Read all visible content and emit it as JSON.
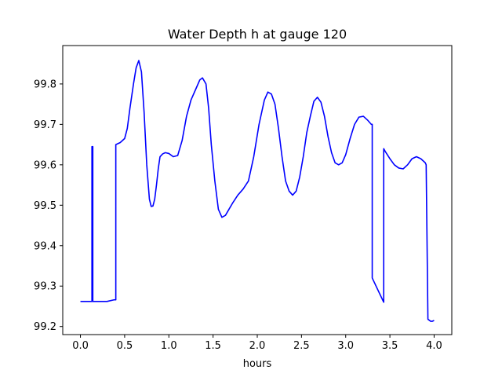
{
  "chart_data": {
    "type": "line",
    "title": "Water Depth h at gauge 120",
    "xlabel": "hours",
    "ylabel": "",
    "xlim": [
      -0.2,
      4.2
    ],
    "ylim": [
      99.18,
      99.895
    ],
    "xticks": [
      0.0,
      0.5,
      1.0,
      1.5,
      2.0,
      2.5,
      3.0,
      3.5,
      4.0
    ],
    "xtick_labels": [
      "0.0",
      "0.5",
      "1.0",
      "1.5",
      "2.0",
      "2.5",
      "3.0",
      "3.5",
      "4.0"
    ],
    "yticks": [
      99.2,
      99.3,
      99.4,
      99.5,
      99.6,
      99.7,
      99.8
    ],
    "ytick_labels": [
      "99.2",
      "99.3",
      "99.4",
      "99.5",
      "99.6",
      "99.7",
      "99.8"
    ],
    "grid": false,
    "legend": "none",
    "series": [
      {
        "color": "#0000ff",
        "x": [
          0.0,
          0.1,
          0.1,
          0.13,
          0.13,
          0.14,
          0.14,
          0.2,
          0.3,
          0.38,
          0.4,
          0.4,
          0.45,
          0.5,
          0.53,
          0.56,
          0.6,
          0.63,
          0.66,
          0.69,
          0.72,
          0.75,
          0.78,
          0.8,
          0.82,
          0.84,
          0.86,
          0.88,
          0.9,
          0.93,
          0.96,
          1.0,
          1.05,
          1.1,
          1.15,
          1.2,
          1.25,
          1.3,
          1.35,
          1.38,
          1.42,
          1.45,
          1.48,
          1.52,
          1.56,
          1.6,
          1.64,
          1.68,
          1.72,
          1.78,
          1.84,
          1.9,
          1.96,
          2.02,
          2.08,
          2.12,
          2.16,
          2.2,
          2.24,
          2.28,
          2.32,
          2.36,
          2.4,
          2.44,
          2.48,
          2.52,
          2.56,
          2.6,
          2.64,
          2.68,
          2.72,
          2.76,
          2.8,
          2.84,
          2.88,
          2.92,
          2.96,
          3.0,
          3.05,
          3.1,
          3.15,
          3.2,
          3.25,
          3.29,
          3.3,
          3.3,
          3.43,
          3.43,
          3.45,
          3.5,
          3.55,
          3.6,
          3.65,
          3.7,
          3.75,
          3.8,
          3.85,
          3.9,
          3.91,
          3.91,
          3.93,
          3.96,
          3.98,
          4.0
        ],
        "y": [
          99.262,
          99.262,
          99.262,
          99.262,
          99.645,
          99.645,
          99.262,
          99.262,
          99.262,
          99.266,
          99.266,
          99.65,
          99.655,
          99.665,
          99.69,
          99.74,
          99.8,
          99.84,
          99.858,
          99.83,
          99.73,
          99.6,
          99.515,
          99.497,
          99.498,
          99.515,
          99.55,
          99.59,
          99.62,
          99.627,
          99.63,
          99.628,
          99.62,
          99.623,
          99.66,
          99.72,
          99.76,
          99.785,
          99.81,
          99.815,
          99.8,
          99.74,
          99.65,
          99.56,
          99.49,
          99.47,
          99.475,
          99.49,
          99.505,
          99.525,
          99.54,
          99.56,
          99.62,
          99.7,
          99.76,
          99.78,
          99.775,
          99.75,
          99.69,
          99.62,
          99.56,
          99.535,
          99.525,
          99.535,
          99.57,
          99.62,
          99.68,
          99.72,
          99.757,
          99.767,
          99.755,
          99.72,
          99.67,
          99.63,
          99.605,
          99.6,
          99.605,
          99.625,
          99.665,
          99.7,
          99.718,
          99.72,
          99.71,
          99.7,
          99.7,
          99.32,
          99.26,
          99.64,
          99.632,
          99.615,
          99.6,
          99.592,
          99.59,
          99.6,
          99.615,
          99.62,
          99.615,
          99.605,
          99.6,
          99.6,
          99.218,
          99.213,
          99.213,
          99.215
        ]
      }
    ]
  }
}
